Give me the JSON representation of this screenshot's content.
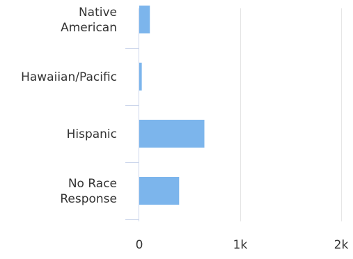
{
  "chart_data": {
    "type": "bar",
    "orientation": "horizontal",
    "title": "",
    "xlabel": "",
    "ylabel": "",
    "categories": [
      [
        "Native",
        "American"
      ],
      [
        "Hawaiian/Pacific"
      ],
      [
        "Hispanic"
      ],
      [
        "No Race",
        "Response"
      ]
    ],
    "values": [
      105,
      25,
      645,
      395
    ],
    "xlim": [
      0,
      2000
    ],
    "x_ticks": [
      {
        "value": 0,
        "label": "0"
      },
      {
        "value": 1000,
        "label": "1k"
      },
      {
        "value": 2000,
        "label": "2k"
      }
    ],
    "grid": true,
    "legend": "none",
    "colors": {
      "bar": "#7cb5ec",
      "grid": "#e6e6e6",
      "axis": "#ccd6eb"
    }
  }
}
